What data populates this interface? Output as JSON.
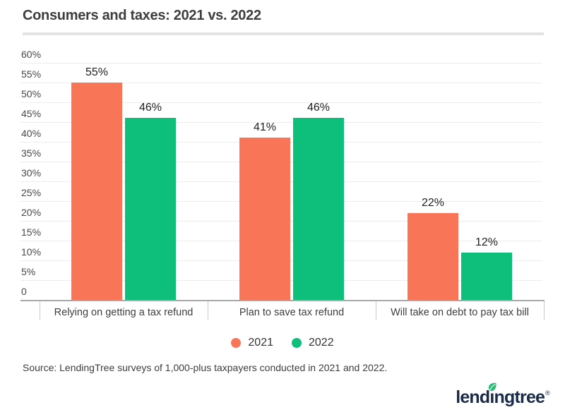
{
  "header": {
    "title": "Consumers and taxes: 2021 vs. 2022"
  },
  "chart_data": {
    "type": "bar",
    "title": "Consumers and taxes: 2021 vs. 2022",
    "categories": [
      "Relying on getting a tax refund",
      "Plan to save tax refund",
      "Will take on debt to pay tax bill"
    ],
    "series": [
      {
        "name": "2021",
        "color": "#f87558",
        "values": [
          55,
          41,
          22
        ]
      },
      {
        "name": "2022",
        "color": "#0dbf7b",
        "values": [
          46,
          46,
          12
        ]
      }
    ],
    "value_suffix": "%",
    "ylim": [
      0,
      60
    ],
    "ytick_step": 5,
    "ytick_labels": [
      "60%",
      "55%",
      "50%",
      "45%",
      "40%",
      "35%",
      "30%",
      "25%",
      "20%",
      "15%",
      "10%",
      "5%",
      "0"
    ],
    "grid": true,
    "legend_position": "bottom",
    "bar_value_labels": [
      "55%",
      "46%",
      "41%",
      "46%",
      "22%",
      "12%"
    ]
  },
  "footer": {
    "source": "Source: LendingTree surveys of 1,000-plus taxpayers conducted in 2021 and 2022.",
    "logo": {
      "part1": "lend",
      "dotless_i": "ı",
      "part2": "ngtree",
      "trademark": "®",
      "navy": "#1a2b49",
      "leaf_green": "#23bd73"
    }
  },
  "colors": {
    "grid": "#ececec",
    "axis": "#a9a9a9",
    "separator": "#c9c9c9",
    "divider": "#e3e3e3",
    "title_text": "#3e3e3e"
  }
}
